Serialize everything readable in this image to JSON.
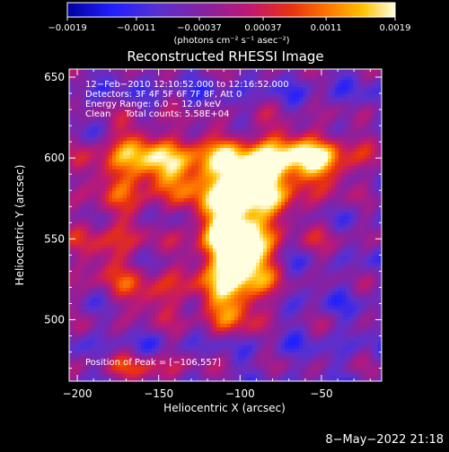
{
  "chart_data": {
    "type": "heatmap",
    "title": "Reconstructed RHESSI Image",
    "xlabel": "Heliocentric X (arcsec)",
    "ylabel": "Heliocentric Y (arcsec)",
    "xlim": [
      -205,
      -13
    ],
    "ylim": [
      462,
      655
    ],
    "xticks": [
      -200,
      -150,
      -100,
      -50
    ],
    "yticks": [
      500,
      550,
      600,
      650
    ],
    "xtick_labels": [
      "−200",
      "−150",
      "−100",
      "−50"
    ],
    "ytick_labels": [
      "500",
      "550",
      "600",
      "650"
    ],
    "colorbar": {
      "range": [
        -0.0019,
        0.0019
      ],
      "ticks": [
        -0.0019,
        -0.0011,
        -0.00037,
        0.00037,
        0.0011,
        0.0019
      ],
      "tick_labels": [
        "−0.0019",
        "−0.0011",
        "−0.00037",
        "0.00037",
        "0.0011",
        "0.0019"
      ],
      "unit_label": "(photons cm⁻² s⁻¹ asec⁻²)"
    },
    "info_lines": [
      "12−Feb−2010 12:10:52.000 to 12:16:52.000",
      "Detectors: 3F 4F 5F 6F 7F 8F, Att 0",
      "Energy Range: 6.0 − 12.0 keV",
      "Clean     Total counts: 5.58E+04"
    ],
    "peak_label": "Position of Peak = [−106,557]",
    "peak": [
      -106,
      557
    ],
    "sources": [
      {
        "x": -105,
        "y": 557,
        "amp": 1.0,
        "sx": 16,
        "sy": 24
      },
      {
        "x": -100,
        "y": 532,
        "amp": 0.8,
        "sx": 14,
        "sy": 20
      },
      {
        "x": -55,
        "y": 600,
        "amp": 0.85,
        "sx": 22,
        "sy": 12
      },
      {
        "x": -130,
        "y": 595,
        "amp": 0.7,
        "sx": 35,
        "sy": 14
      },
      {
        "x": -180,
        "y": 545,
        "amp": 0.45,
        "sx": 18,
        "sy": 22
      },
      {
        "x": -85,
        "y": 585,
        "amp": 0.55,
        "sx": 18,
        "sy": 18
      },
      {
        "x": -165,
        "y": 600,
        "amp": 0.45,
        "sx": 18,
        "sy": 16
      },
      {
        "x": -150,
        "y": 515,
        "amp": 0.45,
        "sx": 16,
        "sy": 10
      },
      {
        "x": -110,
        "y": 505,
        "amp": 0.35,
        "sx": 14,
        "sy": 10
      },
      {
        "x": -160,
        "y": 470,
        "amp": 0.4,
        "sx": 20,
        "sy": 7
      },
      {
        "x": -45,
        "y": 550,
        "amp": 0.2,
        "sx": 12,
        "sy": 12
      }
    ]
  },
  "footer": {
    "date": "8−May−2022 21:18"
  }
}
